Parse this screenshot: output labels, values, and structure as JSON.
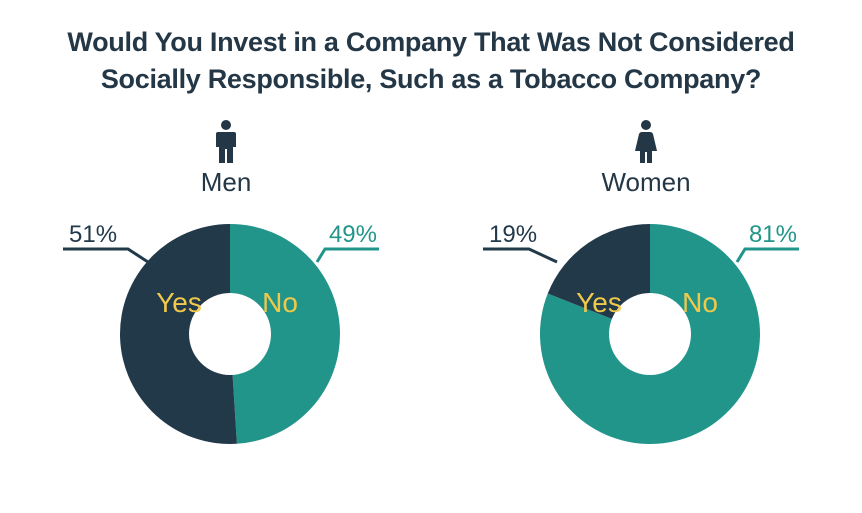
{
  "title_lines": [
    "Would You Invest in a Company That Was Not Considered",
    "Socially Responsible, Such as a Tobacco Company?"
  ],
  "colors": {
    "yes": "#22394a",
    "no": "#22958a",
    "title": "#243746",
    "segment_label": "#f1c94a"
  },
  "chart_data": [
    {
      "type": "pie",
      "group": "Men",
      "icon": "man-icon",
      "slices": [
        {
          "label": "Yes",
          "value": 51,
          "display": "51%"
        },
        {
          "label": "No",
          "value": 49,
          "display": "49%"
        }
      ]
    },
    {
      "type": "pie",
      "group": "Women",
      "icon": "woman-icon",
      "slices": [
        {
          "label": "Yes",
          "value": 19,
          "display": "19%"
        },
        {
          "label": "No",
          "value": 81,
          "display": "81%"
        }
      ]
    }
  ]
}
